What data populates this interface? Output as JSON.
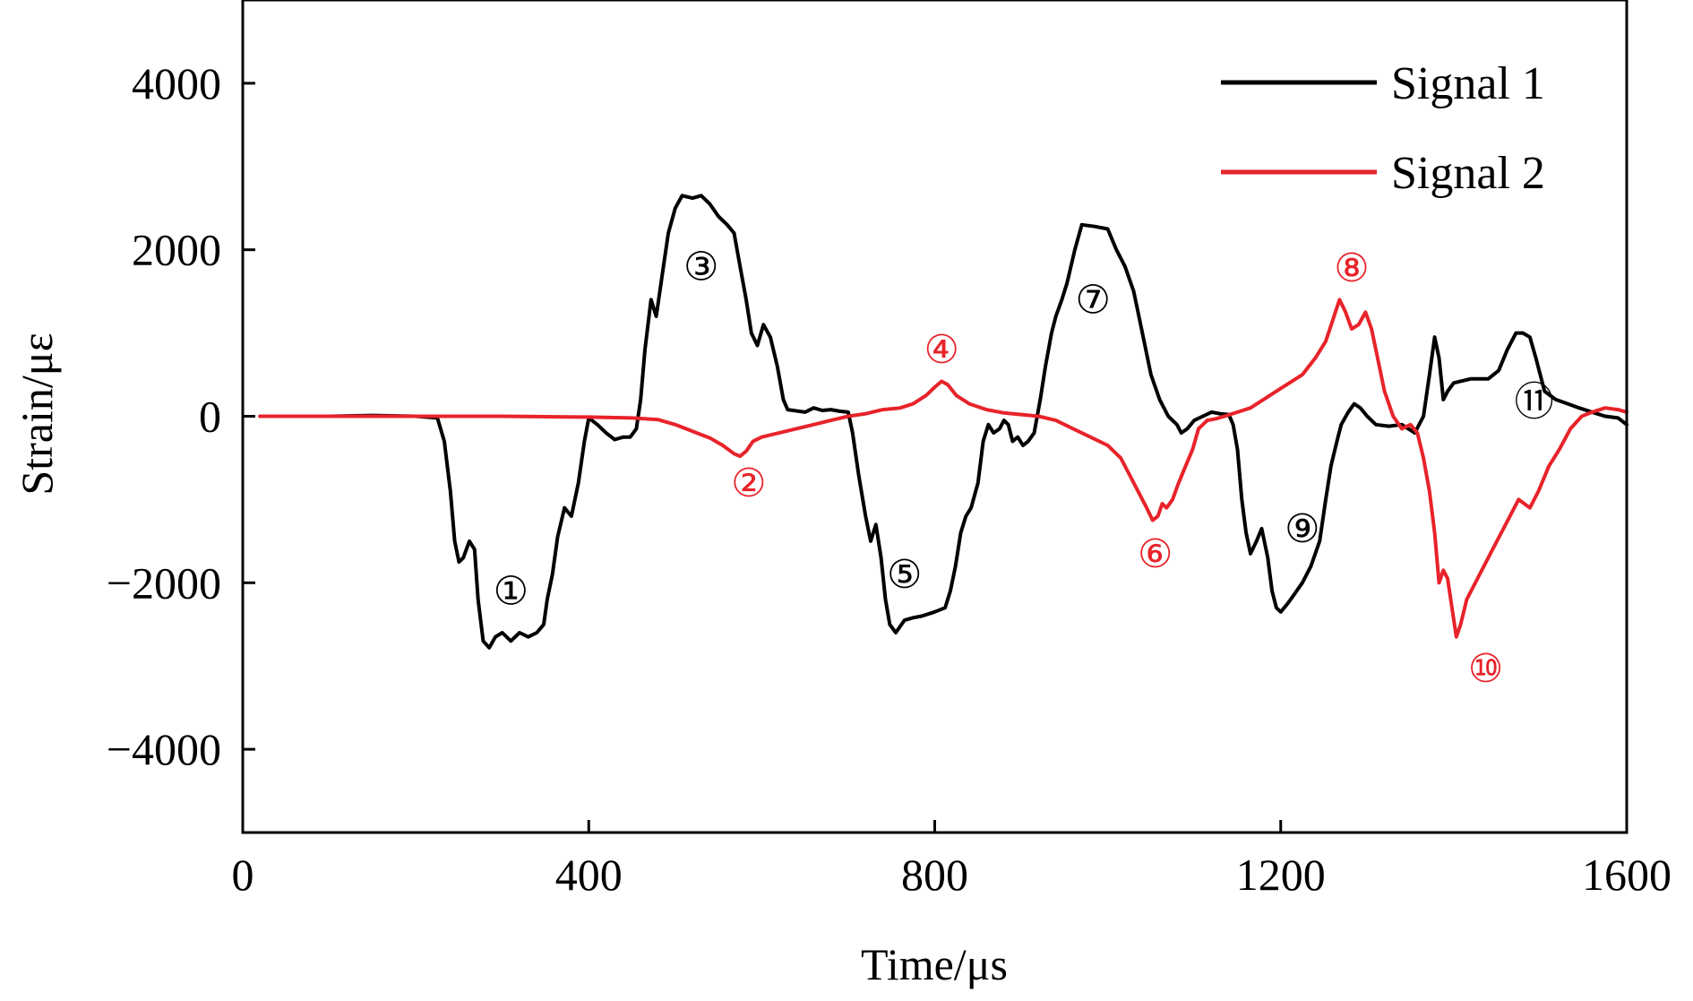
{
  "chart_data": {
    "type": "line",
    "xlabel": "Time/μs",
    "ylabel": "Strain/με",
    "xlim": [
      0,
      1600
    ],
    "ylim": [
      -5000,
      5000
    ],
    "x_ticks": [
      0,
      400,
      800,
      1200,
      1600
    ],
    "y_ticks": [
      -4000,
      -2000,
      0,
      2000,
      4000
    ],
    "y_tick_labels": [
      "−4000",
      "−2000",
      "0",
      "2000",
      "4000"
    ],
    "legend_position": "top-right",
    "grid": false,
    "series": [
      {
        "name": "Signal 1",
        "color": "#000000",
        "points": [
          [
            20,
            0
          ],
          [
            100,
            0
          ],
          [
            150,
            10
          ],
          [
            200,
            0
          ],
          [
            225,
            -20
          ],
          [
            233,
            -300
          ],
          [
            240,
            -900
          ],
          [
            245,
            -1500
          ],
          [
            250,
            -1750
          ],
          [
            255,
            -1700
          ],
          [
            262,
            -1500
          ],
          [
            268,
            -1600
          ],
          [
            272,
            -2200
          ],
          [
            278,
            -2700
          ],
          [
            285,
            -2780
          ],
          [
            292,
            -2650
          ],
          [
            300,
            -2600
          ],
          [
            310,
            -2700
          ],
          [
            320,
            -2600
          ],
          [
            330,
            -2650
          ],
          [
            340,
            -2600
          ],
          [
            348,
            -2500
          ],
          [
            352,
            -2200
          ],
          [
            358,
            -1900
          ],
          [
            364,
            -1450
          ],
          [
            372,
            -1100
          ],
          [
            380,
            -1200
          ],
          [
            388,
            -800
          ],
          [
            395,
            -300
          ],
          [
            400,
            -20
          ],
          [
            410,
            -100
          ],
          [
            420,
            -200
          ],
          [
            430,
            -280
          ],
          [
            440,
            -250
          ],
          [
            448,
            -250
          ],
          [
            455,
            -150
          ],
          [
            460,
            200
          ],
          [
            465,
            800
          ],
          [
            472,
            1400
          ],
          [
            478,
            1200
          ],
          [
            485,
            1700
          ],
          [
            492,
            2200
          ],
          [
            500,
            2500
          ],
          [
            508,
            2650
          ],
          [
            520,
            2620
          ],
          [
            530,
            2650
          ],
          [
            540,
            2550
          ],
          [
            550,
            2400
          ],
          [
            560,
            2300
          ],
          [
            568,
            2200
          ],
          [
            575,
            1800
          ],
          [
            582,
            1400
          ],
          [
            588,
            1000
          ],
          [
            595,
            850
          ],
          [
            602,
            1100
          ],
          [
            610,
            950
          ],
          [
            618,
            600
          ],
          [
            625,
            200
          ],
          [
            630,
            80
          ],
          [
            650,
            50
          ],
          [
            660,
            100
          ],
          [
            670,
            70
          ],
          [
            680,
            80
          ],
          [
            690,
            60
          ],
          [
            700,
            50
          ],
          [
            705,
            -200
          ],
          [
            712,
            -700
          ],
          [
            720,
            -1200
          ],
          [
            726,
            -1500
          ],
          [
            732,
            -1300
          ],
          [
            738,
            -1700
          ],
          [
            743,
            -2200
          ],
          [
            748,
            -2500
          ],
          [
            755,
            -2600
          ],
          [
            765,
            -2450
          ],
          [
            775,
            -2420
          ],
          [
            785,
            -2400
          ],
          [
            800,
            -2350
          ],
          [
            812,
            -2300
          ],
          [
            818,
            -2100
          ],
          [
            824,
            -1800
          ],
          [
            830,
            -1400
          ],
          [
            836,
            -1200
          ],
          [
            842,
            -1100
          ],
          [
            850,
            -800
          ],
          [
            856,
            -300
          ],
          [
            862,
            -100
          ],
          [
            868,
            -200
          ],
          [
            875,
            -150
          ],
          [
            880,
            -50
          ],
          [
            885,
            -100
          ],
          [
            890,
            -300
          ],
          [
            896,
            -250
          ],
          [
            902,
            -350
          ],
          [
            908,
            -300
          ],
          [
            915,
            -200
          ],
          [
            922,
            200
          ],
          [
            928,
            600
          ],
          [
            935,
            1000
          ],
          [
            940,
            1200
          ],
          [
            947,
            1400
          ],
          [
            953,
            1600
          ],
          [
            962,
            2000
          ],
          [
            970,
            2300
          ],
          [
            985,
            2280
          ],
          [
            1000,
            2250
          ],
          [
            1010,
            2000
          ],
          [
            1020,
            1800
          ],
          [
            1030,
            1500
          ],
          [
            1040,
            1000
          ],
          [
            1050,
            500
          ],
          [
            1060,
            200
          ],
          [
            1070,
            0
          ],
          [
            1080,
            -100
          ],
          [
            1085,
            -200
          ],
          [
            1092,
            -150
          ],
          [
            1100,
            -50
          ],
          [
            1110,
            0
          ],
          [
            1120,
            50
          ],
          [
            1130,
            30
          ],
          [
            1140,
            20
          ],
          [
            1145,
            -100
          ],
          [
            1150,
            -400
          ],
          [
            1155,
            -1000
          ],
          [
            1160,
            -1400
          ],
          [
            1165,
            -1650
          ],
          [
            1172,
            -1500
          ],
          [
            1178,
            -1350
          ],
          [
            1185,
            -1700
          ],
          [
            1190,
            -2100
          ],
          [
            1195,
            -2300
          ],
          [
            1200,
            -2350
          ],
          [
            1208,
            -2250
          ],
          [
            1215,
            -2150
          ],
          [
            1225,
            -2000
          ],
          [
            1235,
            -1800
          ],
          [
            1245,
            -1500
          ],
          [
            1252,
            -1000
          ],
          [
            1258,
            -600
          ],
          [
            1265,
            -300
          ],
          [
            1270,
            -100
          ],
          [
            1278,
            50
          ],
          [
            1285,
            150
          ],
          [
            1292,
            100
          ],
          [
            1300,
            0
          ],
          [
            1310,
            -100
          ],
          [
            1325,
            -120
          ],
          [
            1340,
            -100
          ],
          [
            1355,
            -200
          ],
          [
            1365,
            0
          ],
          [
            1372,
            500
          ],
          [
            1378,
            950
          ],
          [
            1383,
            700
          ],
          [
            1388,
            200
          ],
          [
            1393,
            300
          ],
          [
            1400,
            400
          ],
          [
            1420,
            450
          ],
          [
            1440,
            450
          ],
          [
            1452,
            550
          ],
          [
            1462,
            800
          ],
          [
            1472,
            1000
          ],
          [
            1480,
            1000
          ],
          [
            1488,
            950
          ],
          [
            1495,
            700
          ],
          [
            1505,
            300
          ],
          [
            1518,
            200
          ],
          [
            1532,
            150
          ],
          [
            1545,
            100
          ],
          [
            1560,
            50
          ],
          [
            1575,
            0
          ],
          [
            1590,
            -20
          ],
          [
            1600,
            -100
          ]
        ]
      },
      {
        "name": "Signal 2",
        "color": "#e8232a",
        "points": [
          [
            20,
            0
          ],
          [
            100,
            0
          ],
          [
            200,
            0
          ],
          [
            300,
            0
          ],
          [
            400,
            -10
          ],
          [
            450,
            -20
          ],
          [
            480,
            -40
          ],
          [
            500,
            -100
          ],
          [
            520,
            -180
          ],
          [
            540,
            -260
          ],
          [
            555,
            -350
          ],
          [
            568,
            -450
          ],
          [
            575,
            -480
          ],
          [
            582,
            -420
          ],
          [
            590,
            -300
          ],
          [
            600,
            -250
          ],
          [
            620,
            -200
          ],
          [
            640,
            -150
          ],
          [
            660,
            -100
          ],
          [
            680,
            -50
          ],
          [
            700,
            0
          ],
          [
            720,
            30
          ],
          [
            740,
            80
          ],
          [
            760,
            100
          ],
          [
            775,
            150
          ],
          [
            790,
            250
          ],
          [
            800,
            350
          ],
          [
            808,
            420
          ],
          [
            815,
            380
          ],
          [
            825,
            250
          ],
          [
            840,
            150
          ],
          [
            860,
            80
          ],
          [
            880,
            40
          ],
          [
            900,
            20
          ],
          [
            920,
            0
          ],
          [
            940,
            -50
          ],
          [
            960,
            -150
          ],
          [
            980,
            -250
          ],
          [
            1000,
            -350
          ],
          [
            1015,
            -500
          ],
          [
            1025,
            -700
          ],
          [
            1035,
            -900
          ],
          [
            1045,
            -1100
          ],
          [
            1052,
            -1250
          ],
          [
            1058,
            -1200
          ],
          [
            1063,
            -1050
          ],
          [
            1068,
            -1100
          ],
          [
            1075,
            -1000
          ],
          [
            1082,
            -800
          ],
          [
            1090,
            -600
          ],
          [
            1098,
            -400
          ],
          [
            1105,
            -150
          ],
          [
            1115,
            -50
          ],
          [
            1125,
            -30
          ],
          [
            1135,
            0
          ],
          [
            1150,
            50
          ],
          [
            1165,
            100
          ],
          [
            1180,
            200
          ],
          [
            1195,
            300
          ],
          [
            1210,
            400
          ],
          [
            1225,
            500
          ],
          [
            1240,
            700
          ],
          [
            1252,
            900
          ],
          [
            1260,
            1150
          ],
          [
            1268,
            1400
          ],
          [
            1275,
            1250
          ],
          [
            1282,
            1050
          ],
          [
            1290,
            1100
          ],
          [
            1298,
            1250
          ],
          [
            1305,
            1050
          ],
          [
            1312,
            700
          ],
          [
            1320,
            300
          ],
          [
            1330,
            0
          ],
          [
            1340,
            -150
          ],
          [
            1350,
            -100
          ],
          [
            1358,
            -200
          ],
          [
            1365,
            -500
          ],
          [
            1372,
            -900
          ],
          [
            1378,
            -1400
          ],
          [
            1383,
            -2000
          ],
          [
            1388,
            -1850
          ],
          [
            1393,
            -1950
          ],
          [
            1398,
            -2300
          ],
          [
            1403,
            -2650
          ],
          [
            1408,
            -2500
          ],
          [
            1415,
            -2200
          ],
          [
            1430,
            -1900
          ],
          [
            1445,
            -1600
          ],
          [
            1460,
            -1300
          ],
          [
            1475,
            -1000
          ],
          [
            1488,
            -1100
          ],
          [
            1498,
            -900
          ],
          [
            1510,
            -600
          ],
          [
            1522,
            -400
          ],
          [
            1535,
            -150
          ],
          [
            1548,
            0
          ],
          [
            1560,
            50
          ],
          [
            1575,
            100
          ],
          [
            1590,
            80
          ],
          [
            1600,
            50
          ]
        ]
      }
    ],
    "annotations": [
      {
        "text": "①",
        "x": 310,
        "y": -2100,
        "series": "Signal 1"
      },
      {
        "text": "②",
        "x": 585,
        "y": -800,
        "series": "Signal 2"
      },
      {
        "text": "③",
        "x": 530,
        "y": 1800,
        "series": "Signal 1"
      },
      {
        "text": "④",
        "x": 808,
        "y": 800,
        "series": "Signal 2"
      },
      {
        "text": "⑤",
        "x": 765,
        "y": -1900,
        "series": "Signal 1"
      },
      {
        "text": "⑥",
        "x": 1055,
        "y": -1650,
        "series": "Signal 2"
      },
      {
        "text": "⑦",
        "x": 983,
        "y": 1400,
        "series": "Signal 1"
      },
      {
        "text": "⑧",
        "x": 1282,
        "y": 1780,
        "series": "Signal 2"
      },
      {
        "text": "⑨",
        "x": 1225,
        "y": -1350,
        "series": "Signal 1"
      },
      {
        "text": "⑩",
        "x": 1437,
        "y": -3030,
        "series": "Signal 2"
      },
      {
        "text": "⑪",
        "x": 1493,
        "y": 180,
        "series": "Signal 1"
      }
    ]
  }
}
